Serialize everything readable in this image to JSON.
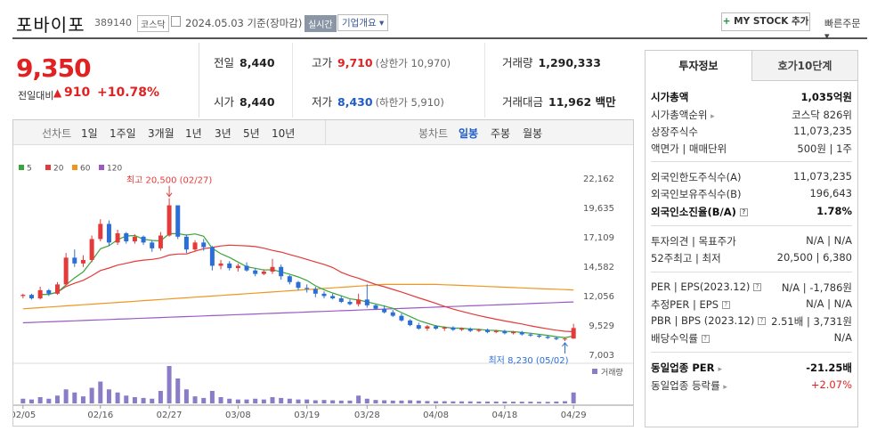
{
  "header": {
    "name": "포바이포",
    "code": "389140",
    "market": "코스닥",
    "date_text": "2024.05.03 기준(장마감)",
    "live_label": "실시간",
    "company_btn": "기업개요 ▾",
    "mystock_label": "MY STOCK 추가",
    "quick_order": "빠른주문 ▾"
  },
  "price": {
    "current": "9,350",
    "change_label": "전일대비",
    "change_arrow": "▲",
    "change": "910",
    "change_pct": "+10.78%",
    "colors": {
      "up": "#e12222",
      "down": "#1f5cc9"
    }
  },
  "stats": {
    "prev_label": "전일",
    "prev": "8,440",
    "open_label": "시가",
    "open": "8,440",
    "high_label": "고가",
    "high": "9,710",
    "upper_limit": "(상한가 10,970)",
    "low_label": "저가",
    "low": "8,430",
    "lower_limit": "(하한가 5,910)",
    "volume_label": "거래량",
    "volume": "1,290,333",
    "amount_label": "거래대금",
    "amount": "11,962 백만"
  },
  "controls": {
    "line_label": "선차트",
    "ranges": [
      "1일",
      "1주일",
      "3개월",
      "1년",
      "3년",
      "5년",
      "10년"
    ],
    "candle_label": "봉차트",
    "periods": [
      "일봉",
      "주봉",
      "월봉"
    ],
    "active_period": "일봉"
  },
  "chart_data": {
    "type": "candlestick",
    "legend": [
      {
        "name": "5",
        "color": "#3aa63a"
      },
      {
        "name": "20",
        "color": "#e33a3a"
      },
      {
        "name": "60",
        "color": "#f0961e"
      },
      {
        "name": "120",
        "color": "#9b59c8"
      }
    ],
    "y_ticks": [
      "22,162",
      "19,635",
      "17,109",
      "14,582",
      "12,056",
      "9,529",
      "7,003"
    ],
    "ylim": [
      7003,
      22162
    ],
    "x_ticks": [
      "02/05",
      "02/16",
      "02/27",
      "03/08",
      "03/19",
      "03/28",
      "04/08",
      "04/18",
      "04/29"
    ],
    "x_tick_index": [
      0,
      9,
      17,
      25,
      33,
      40,
      48,
      56,
      64
    ],
    "high_annotation": "최고 20,500 (02/27)",
    "low_annotation": "최저 8,230 (05/02)",
    "volume_label": "거래량",
    "candles": [
      [
        12100,
        12300,
        11900,
        12200,
        30
      ],
      [
        12200,
        12300,
        11800,
        11900,
        25
      ],
      [
        11900,
        12900,
        11800,
        12600,
        40
      ],
      [
        12600,
        12700,
        12100,
        12300,
        30
      ],
      [
        12300,
        13300,
        12200,
        13100,
        50
      ],
      [
        13100,
        15800,
        13000,
        15400,
        90
      ],
      [
        15400,
        16100,
        14600,
        14900,
        70
      ],
      [
        14900,
        15600,
        14600,
        15200,
        45
      ],
      [
        15200,
        17300,
        15000,
        17000,
        100
      ],
      [
        17000,
        18700,
        16800,
        18300,
        140
      ],
      [
        18300,
        18600,
        16400,
        16700,
        90
      ],
      [
        16700,
        17800,
        16500,
        17500,
        70
      ],
      [
        17500,
        17600,
        16600,
        16800,
        50
      ],
      [
        16800,
        17400,
        16600,
        17200,
        40
      ],
      [
        17200,
        17300,
        16500,
        16700,
        35
      ],
      [
        16700,
        16900,
        15900,
        16200,
        30
      ],
      [
        16200,
        17600,
        16000,
        17300,
        80
      ],
      [
        17300,
        20500,
        17200,
        19900,
        240
      ],
      [
        19900,
        19900,
        17000,
        17200,
        160
      ],
      [
        17200,
        17400,
        15800,
        16100,
        90
      ],
      [
        16100,
        16900,
        16000,
        16700,
        45
      ],
      [
        16700,
        17000,
        16000,
        16300,
        35
      ],
      [
        16300,
        16400,
        14300,
        14700,
        80
      ],
      [
        14700,
        15200,
        14400,
        14900,
        40
      ],
      [
        14900,
        15100,
        14300,
        14500,
        30
      ],
      [
        14500,
        14900,
        14200,
        14700,
        25
      ],
      [
        14700,
        15000,
        14200,
        14300,
        25
      ],
      [
        14300,
        14500,
        13800,
        14000,
        30
      ],
      [
        14000,
        14400,
        13900,
        14200,
        25
      ],
      [
        14200,
        15300,
        14000,
        14600,
        40
      ],
      [
        14600,
        14800,
        13500,
        13800,
        35
      ],
      [
        13800,
        13900,
        13100,
        13300,
        30
      ],
      [
        13300,
        13400,
        12600,
        12800,
        25
      ],
      [
        12800,
        13100,
        12400,
        12700,
        25
      ],
      [
        12700,
        12900,
        12000,
        12300,
        20
      ],
      [
        12300,
        12500,
        11900,
        12100,
        22
      ],
      [
        12100,
        12300,
        11800,
        11900,
        20
      ],
      [
        11900,
        12100,
        11500,
        11600,
        18
      ],
      [
        11600,
        11800,
        11300,
        11400,
        18
      ],
      [
        11400,
        12300,
        11200,
        11800,
        50
      ],
      [
        11800,
        13100,
        11100,
        11300,
        30
      ],
      [
        11300,
        11400,
        10900,
        11000,
        22
      ],
      [
        11000,
        11300,
        10600,
        10700,
        20
      ],
      [
        10700,
        10900,
        10300,
        10400,
        18
      ],
      [
        10400,
        10600,
        9900,
        10000,
        18
      ],
      [
        10000,
        10100,
        9500,
        9600,
        20
      ],
      [
        9600,
        9800,
        9200,
        9300,
        18
      ],
      [
        9300,
        9600,
        9100,
        9500,
        15
      ],
      [
        9500,
        9600,
        9200,
        9300,
        14
      ],
      [
        9300,
        9500,
        9100,
        9400,
        14
      ],
      [
        9400,
        9500,
        9100,
        9200,
        13
      ],
      [
        9200,
        9400,
        9100,
        9300,
        13
      ],
      [
        9300,
        9400,
        9000,
        9100,
        13
      ],
      [
        9100,
        9300,
        9000,
        9200,
        12
      ],
      [
        9200,
        9300,
        8900,
        9000,
        12
      ],
      [
        9000,
        9200,
        8900,
        9100,
        12
      ],
      [
        9100,
        9200,
        8800,
        8900,
        12
      ],
      [
        8900,
        9100,
        8800,
        9000,
        11
      ],
      [
        9000,
        9100,
        8700,
        8800,
        11
      ],
      [
        8800,
        8900,
        8600,
        8700,
        11
      ],
      [
        8700,
        8800,
        8500,
        8600,
        10
      ],
      [
        8600,
        8700,
        8400,
        8500,
        10
      ],
      [
        8500,
        8600,
        8300,
        8400,
        12
      ],
      [
        8400,
        8500,
        8230,
        8440,
        14
      ],
      [
        8440,
        9710,
        8430,
        9350,
        70
      ]
    ]
  },
  "info_panel": {
    "tab_invest": "투자정보",
    "tab_orderbook": "호가10단계",
    "market_cap_label": "시가총액",
    "market_cap": "1,035억원",
    "market_cap_rank_label": "시가총액순위",
    "market_cap_rank": "코스닥 826위",
    "shares_label": "상장주식수",
    "shares": "11,073,235",
    "face_label": "액면가 | 매매단위",
    "face": "500원 | 1주",
    "foreign_limit_label": "외국인한도주식수(A)",
    "foreign_limit": "11,073,235",
    "foreign_hold_label": "외국인보유주식수(B)",
    "foreign_hold": "196,643",
    "foreign_ratio_label": "외국인소진율(B/A)",
    "foreign_ratio": "1.78%",
    "opinion_label": "투자의견 | 목표주가",
    "opinion": "N/A | N/A",
    "week52_label": "52주최고 | 최저",
    "week52": "20,500 | 6,380",
    "per_label": "PER | EPS(2023.12)",
    "per": "N/A | -1,786원",
    "est_per_label": "추정PER | EPS",
    "est_per": "N/A | N/A",
    "pbr_label": "PBR | BPS (2023.12)",
    "pbr": "2.51배 | 3,731원",
    "div_label": "배당수익률",
    "div": "N/A",
    "industry_per_label": "동일업종 PER",
    "industry_per": "-21.25배",
    "industry_rate_label": "동일업종 등락률",
    "industry_rate": "+2.07%"
  }
}
